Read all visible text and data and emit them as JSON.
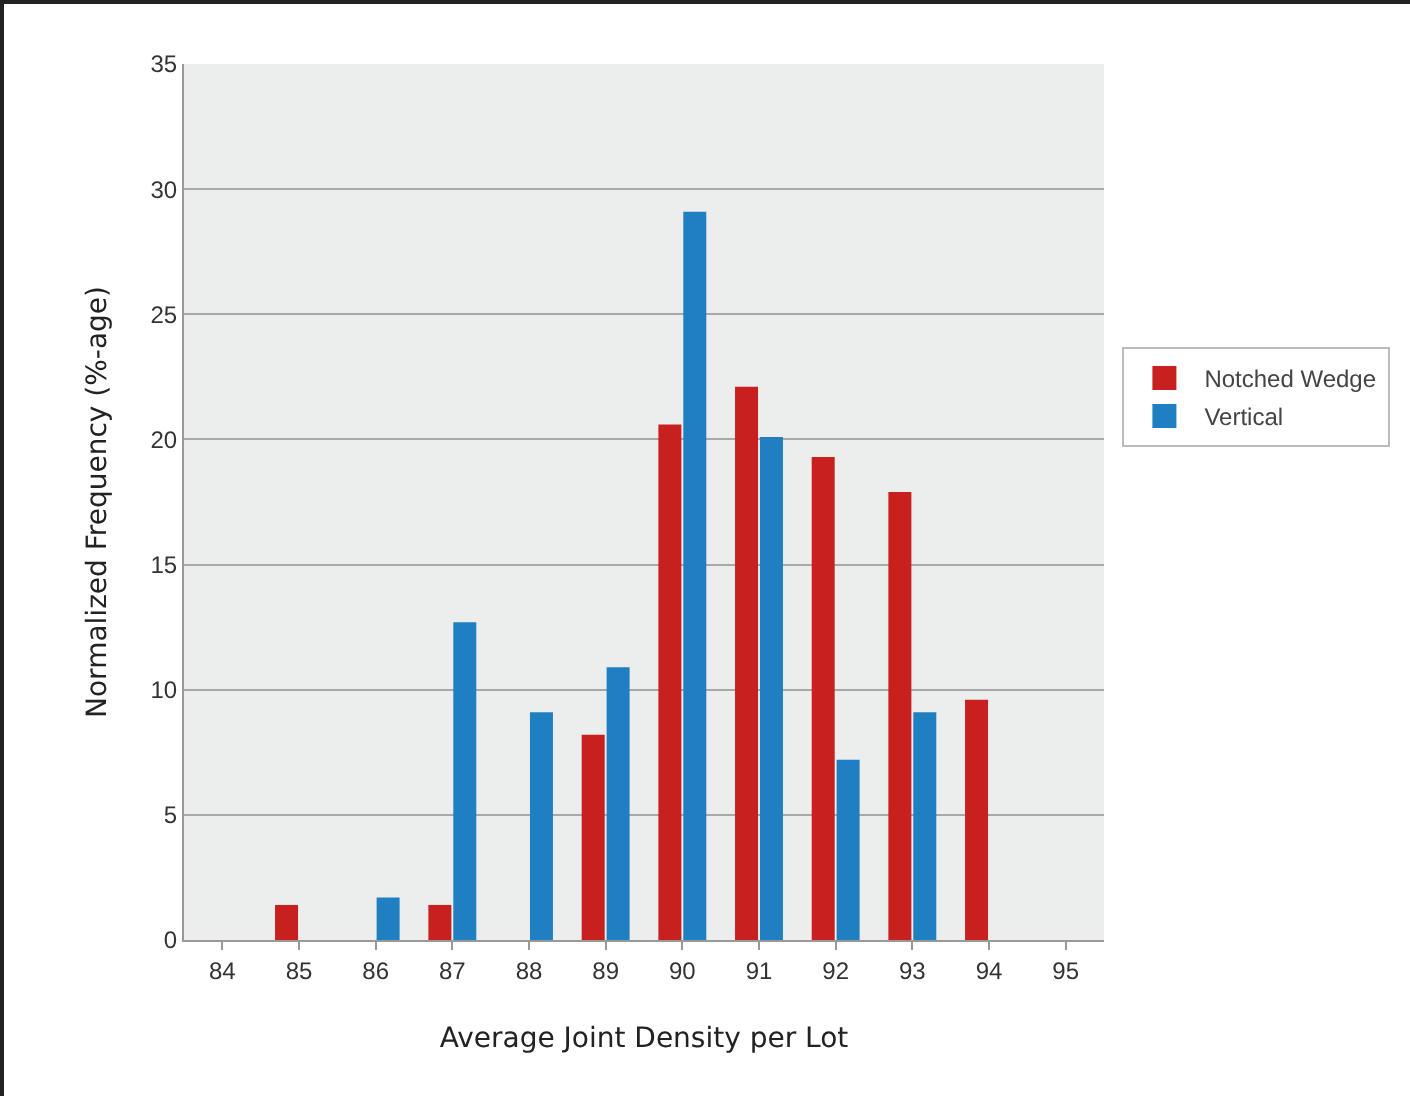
{
  "chart_data": {
    "type": "bar",
    "xlabel": "Average Joint Density per Lot",
    "ylabel": "Normalized Frequency (%-age)",
    "categories": [
      "84",
      "85",
      "86",
      "87",
      "88",
      "89",
      "90",
      "91",
      "92",
      "93",
      "94",
      "95"
    ],
    "series": [
      {
        "name": "Notched Wedge",
        "color": "#c8201f",
        "values": [
          0,
          1.4,
          0,
          1.4,
          0,
          8.2,
          20.6,
          22.1,
          19.3,
          17.9,
          9.6,
          0
        ]
      },
      {
        "name": "Vertical",
        "color": "#1f7fc0",
        "values": [
          0,
          0,
          1.7,
          12.7,
          9.1,
          10.9,
          29.1,
          20.1,
          7.2,
          9.1,
          0,
          0
        ]
      }
    ],
    "ylim": [
      0,
      35
    ],
    "yticks": [
      0,
      5,
      10,
      15,
      20,
      25,
      30,
      35
    ],
    "grid": "y",
    "legend": "right"
  }
}
